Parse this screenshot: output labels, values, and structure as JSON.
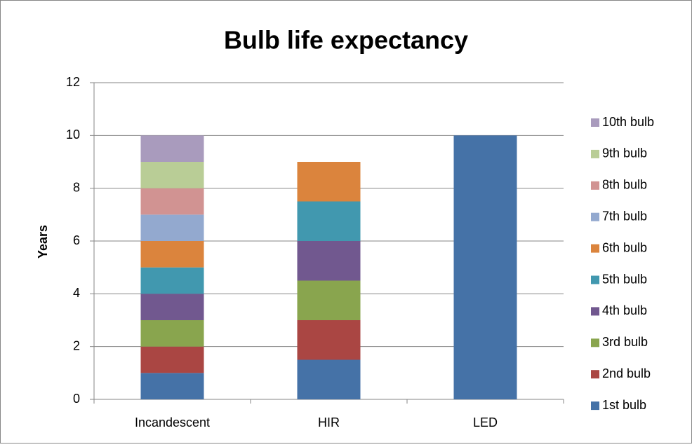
{
  "chart_data": {
    "type": "stacked_bar",
    "title": "Bulb life expectancy",
    "y_label": "Years",
    "categories": [
      "Incandescent",
      "HIR",
      "LED"
    ],
    "series": [
      {
        "name": "1st bulb",
        "color": "#4572a7",
        "values": [
          1,
          1.5,
          10
        ]
      },
      {
        "name": "2nd bulb",
        "color": "#aa4643",
        "values": [
          1,
          1.5,
          0
        ]
      },
      {
        "name": "3rd bulb",
        "color": "#89a54e",
        "values": [
          1,
          1.5,
          0
        ]
      },
      {
        "name": "4th bulb",
        "color": "#71588f",
        "values": [
          1,
          1.5,
          0
        ]
      },
      {
        "name": "5th bulb",
        "color": "#4198af",
        "values": [
          1,
          1.5,
          0
        ]
      },
      {
        "name": "6th bulb",
        "color": "#db843d",
        "values": [
          1,
          1.5,
          0
        ]
      },
      {
        "name": "7th bulb",
        "color": "#93a9cf",
        "values": [
          1,
          0,
          0
        ]
      },
      {
        "name": "8th bulb",
        "color": "#d19392",
        "values": [
          1,
          0,
          0
        ]
      },
      {
        "name": "9th bulb",
        "color": "#b9cd96",
        "values": [
          1,
          0,
          0
        ]
      },
      {
        "name": "10th bulb",
        "color": "#a99bbd",
        "values": [
          1,
          0,
          0
        ]
      }
    ],
    "ylim": [
      0,
      12
    ],
    "yticks": [
      0,
      2,
      4,
      6,
      8,
      10,
      12
    ],
    "grid": true,
    "legend": "right"
  }
}
